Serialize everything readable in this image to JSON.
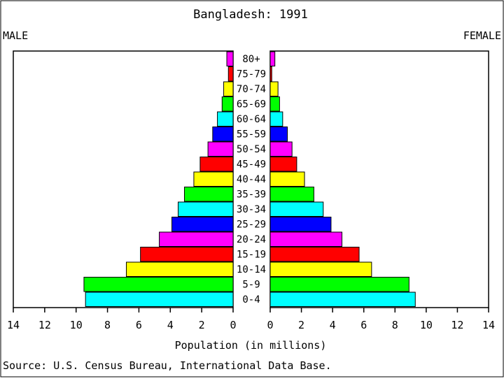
{
  "chart_data": {
    "type": "bar",
    "title": "Bangladesh: 1991",
    "left_label": "MALE",
    "right_label": "FEMALE",
    "xlabel": "Population (in millions)",
    "source": "Source: U.S. Census Bureau, International Data Base.",
    "xlim": [
      0,
      14
    ],
    "ticks": [
      "14",
      "12",
      "10",
      "8",
      "6",
      "4",
      "2",
      "0"
    ],
    "right_ticks": [
      "0",
      "2",
      "4",
      "6",
      "8",
      "10",
      "12",
      "14"
    ],
    "categories": [
      "80+",
      "75-79",
      "70-74",
      "65-69",
      "60-64",
      "55-59",
      "50-54",
      "45-49",
      "40-44",
      "35-39",
      "30-34",
      "25-29",
      "20-24",
      "15-19",
      "10-14",
      "5-9",
      "0-4"
    ],
    "colors": [
      "#ff00ff",
      "#ff0000",
      "#ffff00",
      "#00ff00",
      "#00ffff",
      "#0000ff",
      "#ff00ff",
      "#ff0000",
      "#ffff00",
      "#00ff00",
      "#00ffff",
      "#0000ff",
      "#ff00ff",
      "#ff0000",
      "#ffff00",
      "#00ff00",
      "#00ffff"
    ],
    "series": [
      {
        "name": "MALE",
        "values": [
          0.4,
          0.3,
          0.6,
          0.7,
          1.0,
          1.3,
          1.6,
          2.1,
          2.5,
          3.1,
          3.5,
          3.9,
          4.7,
          5.9,
          6.8,
          9.5,
          9.4
        ]
      },
      {
        "name": "FEMALE",
        "values": [
          0.3,
          0.1,
          0.5,
          0.6,
          0.8,
          1.1,
          1.4,
          1.7,
          2.2,
          2.8,
          3.4,
          3.9,
          4.6,
          5.7,
          6.5,
          8.9,
          9.3
        ]
      }
    ]
  }
}
